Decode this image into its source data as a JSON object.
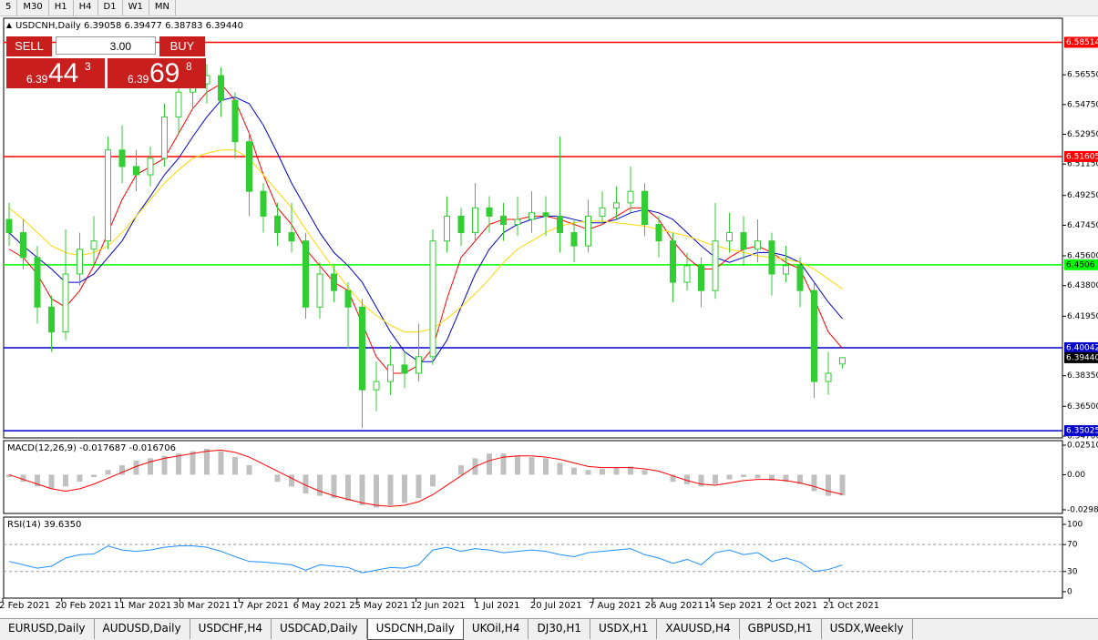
{
  "toolbar": {
    "timeframes": [
      "5",
      "M30",
      "H1",
      "H4",
      "D1",
      "W1",
      "MN"
    ]
  },
  "trade_panel": {
    "sell": "SELL",
    "buy": "BUY",
    "volume": "3.00",
    "sell_price": {
      "big": "6.39",
      "pips": "44",
      "point": "3"
    },
    "buy_price": {
      "big": "6.39",
      "pips": "69",
      "point": "8"
    }
  },
  "chart_data": [
    {
      "type": "candlestick",
      "title": "USDCNH,Daily 6.39058 6.39477 6.38783 6.39440",
      "color": "#32cd32",
      "ylim": [
        6.3459,
        6.5997
      ],
      "yticks": [
        {
          "value": 6.5655,
          "label": "6.56550"
        },
        {
          "value": 6.5475,
          "label": "6.54750"
        },
        {
          "value": 6.5295,
          "label": "6.52950"
        },
        {
          "value": 6.5115,
          "label": "6.51150"
        },
        {
          "value": 6.4925,
          "label": "6.49250"
        },
        {
          "value": 6.4745,
          "label": "6.47450"
        },
        {
          "value": 6.456,
          "label": "6.45600"
        },
        {
          "value": 6.438,
          "label": "6.43800"
        },
        {
          "value": 6.4195,
          "label": "6.41950"
        },
        {
          "value": 6.3835,
          "label": "6.38350"
        },
        {
          "value": 6.365,
          "label": "6.36500"
        },
        {
          "value": 6.347,
          "label": "6.34700"
        }
      ],
      "ohlc": [
        [
          6.478,
          6.488,
          6.462,
          6.47
        ],
        [
          6.47,
          6.478,
          6.448,
          6.455
        ],
        [
          6.455,
          6.462,
          6.415,
          6.425
        ],
        [
          6.425,
          6.432,
          6.398,
          6.41
        ],
        [
          6.41,
          6.472,
          6.405,
          6.445
        ],
        [
          6.445,
          6.47,
          6.438,
          6.46
        ],
        [
          6.46,
          6.48,
          6.45,
          6.465
        ],
        [
          6.465,
          6.528,
          6.46,
          6.52
        ],
        [
          6.52,
          6.535,
          6.5,
          6.51
        ],
        [
          6.51,
          6.52,
          6.495,
          6.505
        ],
        [
          6.505,
          6.522,
          6.498,
          6.515
        ],
        [
          6.515,
          6.548,
          6.51,
          6.54
        ],
        [
          6.54,
          6.562,
          6.53,
          6.555
        ],
        [
          6.555,
          6.575,
          6.545,
          6.56
        ],
        [
          6.56,
          6.572,
          6.548,
          6.565
        ],
        [
          6.565,
          6.57,
          6.54,
          6.55
        ],
        [
          6.55,
          6.555,
          6.515,
          6.525
        ],
        [
          6.525,
          6.53,
          6.48,
          6.495
        ],
        [
          6.495,
          6.5,
          6.47,
          6.48
        ],
        [
          6.48,
          6.488,
          6.462,
          6.47
        ],
        [
          6.47,
          6.488,
          6.458,
          6.465
        ],
        [
          6.465,
          6.47,
          6.418,
          6.425
        ],
        [
          6.425,
          6.452,
          6.418,
          6.445
        ],
        [
          6.445,
          6.45,
          6.428,
          6.435
        ],
        [
          6.435,
          6.44,
          6.4,
          6.425
        ],
        [
          6.425,
          6.43,
          6.352,
          6.375
        ],
        [
          6.375,
          6.392,
          6.362,
          6.38
        ],
        [
          6.38,
          6.402,
          6.372,
          6.39
        ],
        [
          6.39,
          6.398,
          6.376,
          6.385
        ],
        [
          6.385,
          6.415,
          6.38,
          6.395
        ],
        [
          6.395,
          6.472,
          6.39,
          6.465
        ],
        [
          6.465,
          6.492,
          6.458,
          6.48
        ],
        [
          6.48,
          6.485,
          6.462,
          6.47
        ],
        [
          6.47,
          6.5,
          6.465,
          6.485
        ],
        [
          6.485,
          6.492,
          6.47,
          6.48
        ],
        [
          6.48,
          6.488,
          6.465,
          6.475
        ],
        [
          6.475,
          6.492,
          6.468,
          6.478
        ],
        [
          6.478,
          6.495,
          6.47,
          6.482
        ],
        [
          6.482,
          6.492,
          6.468,
          6.48
        ],
        [
          6.48,
          6.528,
          6.458,
          6.47
        ],
        [
          6.47,
          6.478,
          6.452,
          6.462
        ],
        [
          6.462,
          6.49,
          6.458,
          6.48
        ],
        [
          6.48,
          6.495,
          6.475,
          6.485
        ],
        [
          6.485,
          6.498,
          6.478,
          6.488
        ],
        [
          6.488,
          6.51,
          6.482,
          6.495
        ],
        [
          6.495,
          6.5,
          6.468,
          6.475
        ],
        [
          6.475,
          6.48,
          6.455,
          6.465
        ],
        [
          6.465,
          6.47,
          6.428,
          6.44
        ],
        [
          6.44,
          6.458,
          6.435,
          6.45
        ],
        [
          6.45,
          6.455,
          6.425,
          6.435
        ],
        [
          6.435,
          6.488,
          6.43,
          6.465
        ],
        [
          6.465,
          6.482,
          6.458,
          6.47
        ],
        [
          6.47,
          6.48,
          6.45,
          6.46
        ],
        [
          6.46,
          6.478,
          6.452,
          6.465
        ],
        [
          6.465,
          6.47,
          6.432,
          6.445
        ],
        [
          6.445,
          6.462,
          6.44,
          6.45
        ],
        [
          6.45,
          6.455,
          6.425,
          6.435
        ],
        [
          6.435,
          6.44,
          6.37,
          6.38
        ],
        [
          6.38,
          6.398,
          6.372,
          6.385
        ],
        [
          6.39058,
          6.39477,
          6.38783,
          6.3944
        ]
      ],
      "series": [
        {
          "color": "#ff0000",
          "values": [
            6.46,
            6.455,
            6.445,
            6.43,
            6.425,
            6.435,
            6.45,
            6.47,
            6.49,
            6.505,
            6.51,
            6.515,
            6.53,
            6.545,
            6.555,
            6.56,
            6.55,
            6.53,
            6.505,
            6.485,
            6.475,
            6.46,
            6.45,
            6.44,
            6.435,
            6.415,
            6.395,
            6.385,
            6.385,
            6.39,
            6.4,
            6.43,
            6.455,
            6.465,
            6.475,
            6.478,
            6.478,
            6.48,
            6.48,
            6.478,
            6.475,
            6.472,
            6.475,
            6.48,
            6.485,
            6.485,
            6.478,
            6.465,
            6.455,
            6.448,
            6.448,
            6.455,
            6.46,
            6.462,
            6.458,
            6.452,
            6.448,
            6.43,
            6.41,
            6.4
          ]
        },
        {
          "color": "#0000cd",
          "values": [
            6.47,
            6.462,
            6.455,
            6.448,
            6.44,
            6.44,
            6.445,
            6.455,
            6.465,
            6.48,
            6.492,
            6.505,
            6.515,
            6.528,
            6.54,
            6.55,
            6.552,
            6.548,
            6.535,
            6.518,
            6.5,
            6.485,
            6.47,
            6.458,
            6.45,
            6.44,
            6.425,
            6.41,
            6.398,
            6.392,
            6.392,
            6.405,
            6.425,
            6.445,
            6.46,
            6.47,
            6.475,
            6.478,
            6.48,
            6.48,
            6.478,
            6.476,
            6.476,
            6.478,
            6.482,
            6.484,
            6.482,
            6.478,
            6.47,
            6.462,
            6.455,
            6.452,
            6.455,
            6.458,
            6.458,
            6.456,
            6.452,
            6.44,
            6.428,
            6.418
          ]
        },
        {
          "color": "#ffd700",
          "values": [
            6.485,
            6.478,
            6.47,
            6.462,
            6.458,
            6.456,
            6.458,
            6.462,
            6.47,
            6.48,
            6.49,
            6.5,
            6.508,
            6.515,
            6.518,
            6.52,
            6.52,
            6.515,
            6.505,
            6.495,
            6.485,
            6.472,
            6.46,
            6.448,
            6.437,
            6.427,
            6.42,
            6.414,
            6.41,
            6.41,
            6.412,
            6.418,
            6.425,
            6.433,
            6.442,
            6.452,
            6.46,
            6.465,
            6.47,
            6.474,
            6.476,
            6.477,
            6.477,
            6.476,
            6.475,
            6.474,
            6.472,
            6.47,
            6.468,
            6.465,
            6.462,
            6.46,
            6.458,
            6.456,
            6.455,
            6.454,
            6.452,
            6.448,
            6.442,
            6.436
          ]
        }
      ],
      "levels": [
        {
          "value": 6.58514,
          "color": "#ff0000"
        },
        {
          "value": 6.51605,
          "color": "#ff0000"
        },
        {
          "value": 6.4506,
          "color": "#00ff00"
        },
        {
          "value": 6.40042,
          "color": "#0000cd"
        },
        {
          "value": 6.35025,
          "color": "#0000cd"
        }
      ],
      "last_price": {
        "value": 6.3944,
        "label": "6.39440"
      }
    },
    {
      "type": "macd",
      "title": "MACD(12,26,9) -0.017687 -0.016706",
      "ylim": [
        -0.033,
        0.029
      ],
      "yticks": [
        {
          "value": 0.0251,
          "label": "0.025100"
        },
        {
          "value": 0,
          "label": "0.00"
        },
        {
          "value": -0.02988,
          "label": "-0.029880"
        }
      ],
      "histogram_color": "#c0c0c0",
      "signal_color": "#ff0000",
      "histogram": [
        -0.002,
        -0.006,
        -0.01,
        -0.012,
        -0.01,
        -0.006,
        -0.002,
        0.004,
        0.008,
        0.012,
        0.014,
        0.016,
        0.018,
        0.02,
        0.022,
        0.02,
        0.015,
        0.008,
        0.0,
        -0.006,
        -0.01,
        -0.016,
        -0.018,
        -0.02,
        -0.022,
        -0.026,
        -0.028,
        -0.026,
        -0.024,
        -0.02,
        -0.01,
        0.0,
        0.008,
        0.014,
        0.018,
        0.018,
        0.016,
        0.015,
        0.014,
        0.01,
        0.006,
        0.004,
        0.005,
        0.006,
        0.007,
        0.004,
        0.0,
        -0.006,
        -0.008,
        -0.01,
        -0.008,
        -0.004,
        -0.002,
        -0.003,
        -0.005,
        -0.006,
        -0.008,
        -0.014,
        -0.018,
        -0.017687
      ],
      "signal": [
        0.0,
        -0.004,
        -0.008,
        -0.012,
        -0.014,
        -0.012,
        -0.008,
        -0.003,
        0.002,
        0.007,
        0.011,
        0.014,
        0.016,
        0.018,
        0.02,
        0.021,
        0.019,
        0.015,
        0.009,
        0.003,
        -0.003,
        -0.009,
        -0.014,
        -0.018,
        -0.021,
        -0.024,
        -0.026,
        -0.027,
        -0.026,
        -0.023,
        -0.017,
        -0.009,
        -0.001,
        0.007,
        0.012,
        0.015,
        0.016,
        0.016,
        0.015,
        0.013,
        0.01,
        0.007,
        0.006,
        0.006,
        0.006,
        0.005,
        0.003,
        -0.001,
        -0.005,
        -0.008,
        -0.009,
        -0.007,
        -0.005,
        -0.004,
        -0.004,
        -0.005,
        -0.007,
        -0.01,
        -0.014,
        -0.016706
      ]
    },
    {
      "type": "rsi",
      "title": "RSI(14) 39.6350",
      "ylim": [
        -9.5,
        110.8
      ],
      "yticks": [
        100,
        70,
        30,
        0
      ],
      "dashed": [
        70,
        30
      ],
      "color": "#1e90ff",
      "values": [
        45,
        40,
        35,
        38,
        50,
        55,
        56,
        68,
        62,
        60,
        62,
        66,
        68,
        68,
        66,
        60,
        52,
        45,
        44,
        42,
        40,
        32,
        40,
        38,
        36,
        28,
        32,
        36,
        35,
        40,
        62,
        66,
        60,
        64,
        62,
        58,
        60,
        62,
        60,
        55,
        52,
        58,
        60,
        62,
        64,
        55,
        50,
        42,
        48,
        40,
        58,
        62,
        55,
        58,
        45,
        50,
        44,
        30,
        33,
        39.635
      ]
    }
  ],
  "time_axis": [
    "2 Feb 2021",
    "20 Feb 2021",
    "11 Mar 2021",
    "30 Mar 2021",
    "17 Apr 2021",
    "6 May 2021",
    "25 May 2021",
    "12 Jun 2021",
    "1 Jul 2021",
    "20 Jul 2021",
    "7 Aug 2021",
    "26 Aug 2021",
    "14 Sep 2021",
    "2 Oct 2021",
    "21 Oct 2021"
  ],
  "tabs": [
    {
      "label": "EURUSD,Daily"
    },
    {
      "label": "AUDUSD,Daily"
    },
    {
      "label": "USDCHF,H4"
    },
    {
      "label": "USDCAD,Daily"
    },
    {
      "label": "USDCNH,Daily",
      "active": true
    },
    {
      "label": "UKOil,H4"
    },
    {
      "label": "DJ30,H1"
    },
    {
      "label": "USDX,H1"
    },
    {
      "label": "XAUUSD,H4"
    },
    {
      "label": "GBPUSD,H1"
    },
    {
      "label": "USDX,Weekly"
    }
  ]
}
